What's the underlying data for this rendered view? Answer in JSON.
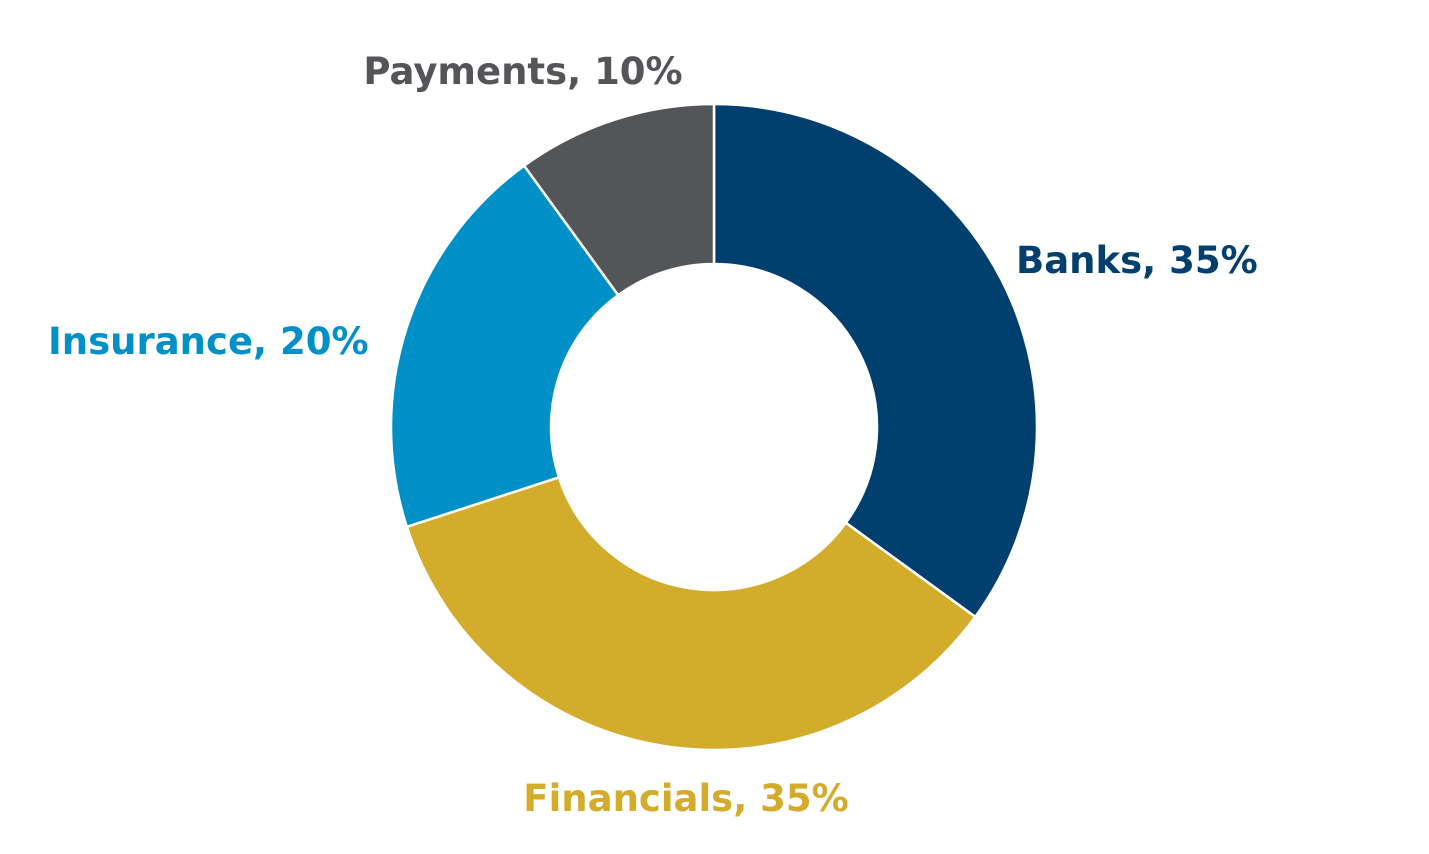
{
  "chart_data": {
    "type": "pie",
    "donut": true,
    "title": "",
    "series": [
      {
        "values": [
          35,
          35,
          20,
          10
        ]
      }
    ],
    "categories": [
      "Banks",
      "Financials",
      "Insurance",
      "Payments"
    ],
    "values": [
      35,
      35,
      20,
      10
    ],
    "unit": "%",
    "labels": [
      "Banks, 35%",
      "Financials, 35%",
      "Insurance, 20%",
      "Payments, 10%"
    ],
    "colors": [
      "#003f6e",
      "#d4ac2c",
      "#0090c8",
      "#545558"
    ],
    "legend": "none",
    "start_angle": "12 o'clock",
    "direction": "clockwise"
  }
}
